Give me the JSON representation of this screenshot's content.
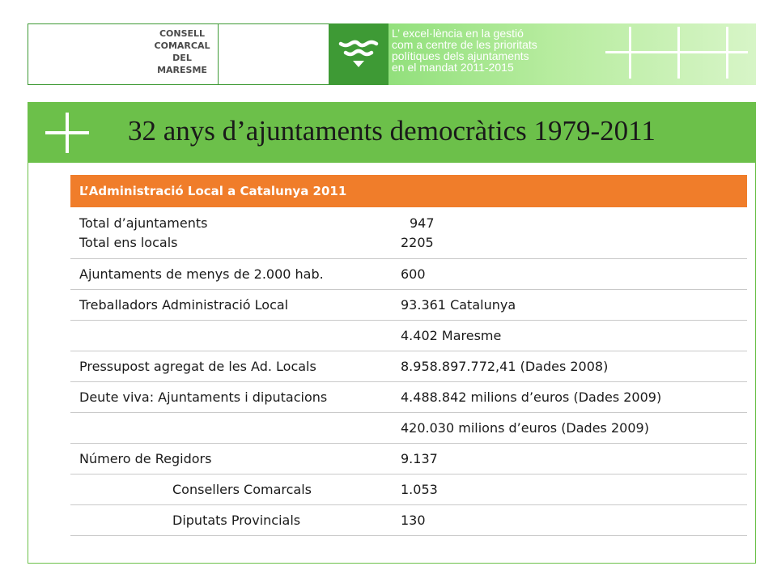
{
  "header": {
    "logo_lines": [
      "CONSELL",
      "COMARCAL",
      "DEL",
      "MARESME"
    ],
    "logo_mark_icon": "wave-mark-icon",
    "tagline_lines": [
      "L’ excel·lència en la gestió",
      "com a centre de les prioritats",
      "polítiques dels ajuntaments",
      "en el mandat 2011-2015"
    ],
    "cross_icon": "plus-cross-icon",
    "colors": {
      "dark_green": "#3e9a35",
      "light_green": "#a8e890"
    }
  },
  "slide": {
    "title": "32 anys d’ajuntaments democràtics 1979-2011",
    "title_bar_color": "#6cc04a"
  },
  "table": {
    "header": "L’Administració Local a Catalunya 2011",
    "header_color": "#f07d2a",
    "rows": [
      {
        "label": "Total d’ajuntaments",
        "value": "947"
      },
      {
        "label": "Total ens locals",
        "value": "2205"
      },
      {
        "label": "Ajuntaments de menys de 2.000 hab.",
        "value": "600"
      },
      {
        "label": "Treballadors Administració Local",
        "value": "93.361 Catalunya"
      },
      {
        "label": "",
        "value": "4.402  Maresme"
      },
      {
        "label": "Pressupost agregat de les Ad. Locals",
        "value": "8.958.897.772,41 (Dades 2008)"
      },
      {
        "label": "Deute viva: Ajuntaments i diputacions",
        "value": "4.488.842 milions d’euros (Dades 2009)"
      },
      {
        "label": "",
        "value": "420.030 milions d’euros (Dades 2009)"
      },
      {
        "label": "Número de Regidors",
        "value": "9.137"
      },
      {
        "label": "Consellers Comarcals",
        "value": "1.053"
      },
      {
        "label": "Diputats Provincials",
        "value": "130"
      }
    ]
  }
}
